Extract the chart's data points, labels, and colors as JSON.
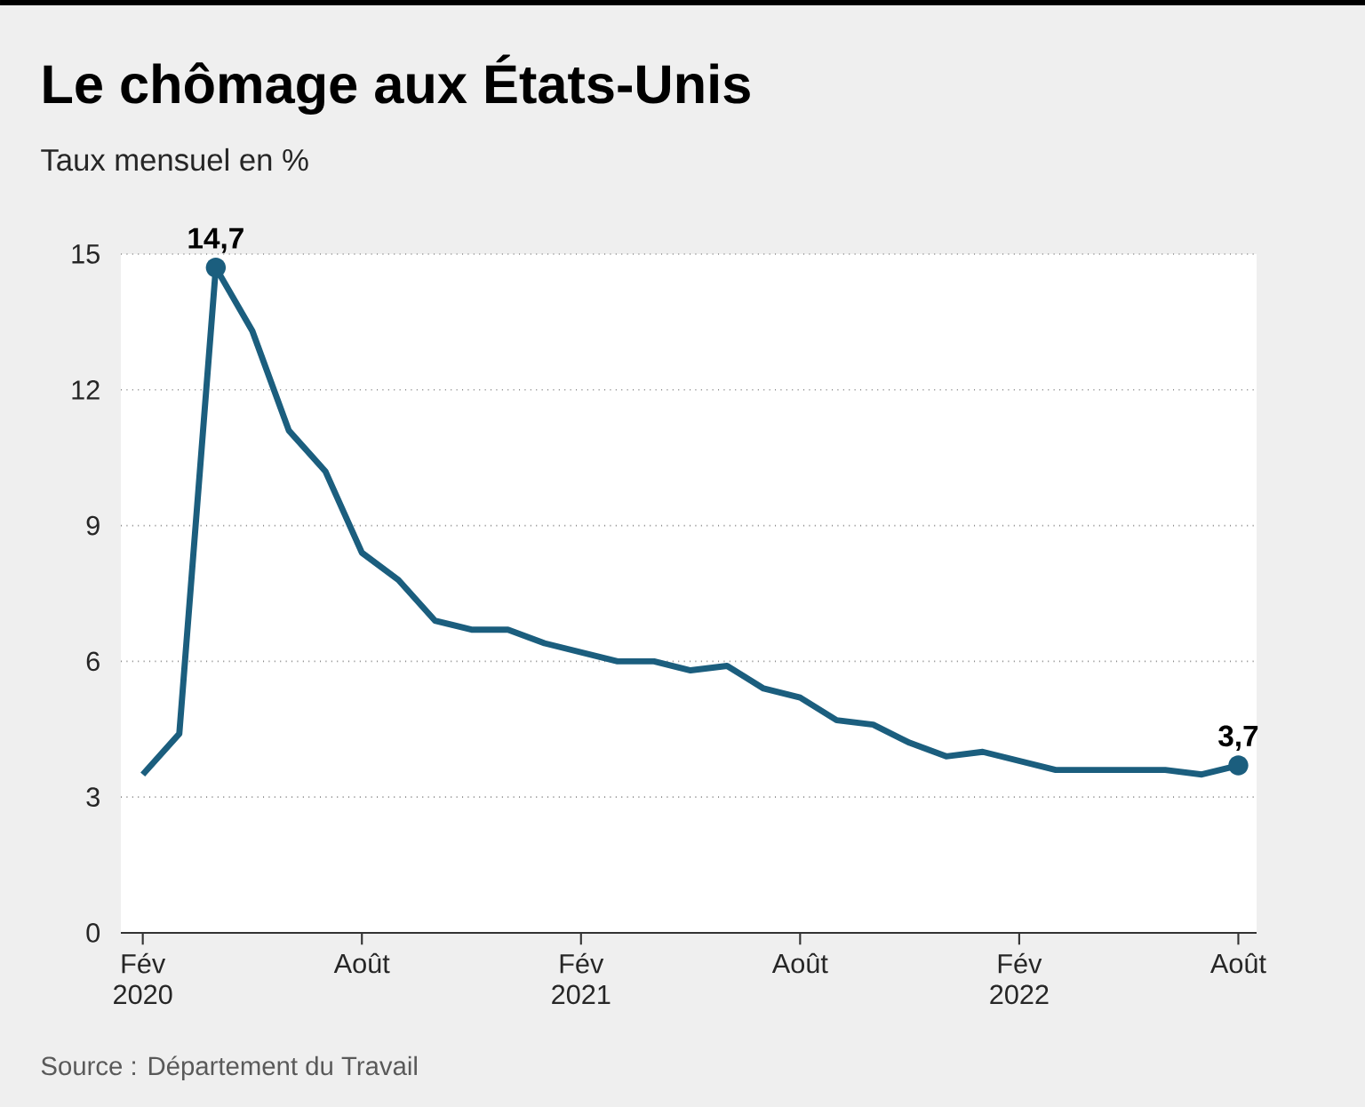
{
  "chart_data": {
    "type": "line",
    "title": "Le chômage aux États-Unis",
    "subtitle": "Taux mensuel en %",
    "categories": [
      "Fév 2020",
      null,
      null,
      null,
      null,
      null,
      "Août",
      null,
      null,
      null,
      null,
      null,
      "Fév 2021",
      null,
      null,
      null,
      null,
      null,
      "Août",
      null,
      null,
      null,
      null,
      null,
      "Fév 2022",
      null,
      null,
      null,
      null,
      null,
      "Août"
    ],
    "values": [
      3.5,
      4.4,
      14.7,
      13.3,
      11.1,
      10.2,
      8.4,
      7.8,
      6.9,
      6.7,
      6.7,
      6.4,
      6.2,
      6.0,
      6.0,
      5.8,
      5.9,
      5.4,
      5.2,
      4.7,
      4.6,
      4.2,
      3.9,
      4.0,
      3.8,
      3.6,
      3.6,
      3.6,
      3.6,
      3.5,
      3.7
    ],
    "color": "#1b5e7e",
    "ylim": [
      0,
      15
    ],
    "yticks": [
      0,
      3,
      6,
      9,
      12,
      15
    ],
    "grid": "y",
    "marker": "none",
    "line_style": "solid",
    "annotations": [
      {
        "text": "14,7",
        "y": 14.7
      },
      {
        "text": "3,7",
        "y": 3.7
      },
      "Source : Département du Travail"
    ]
  }
}
